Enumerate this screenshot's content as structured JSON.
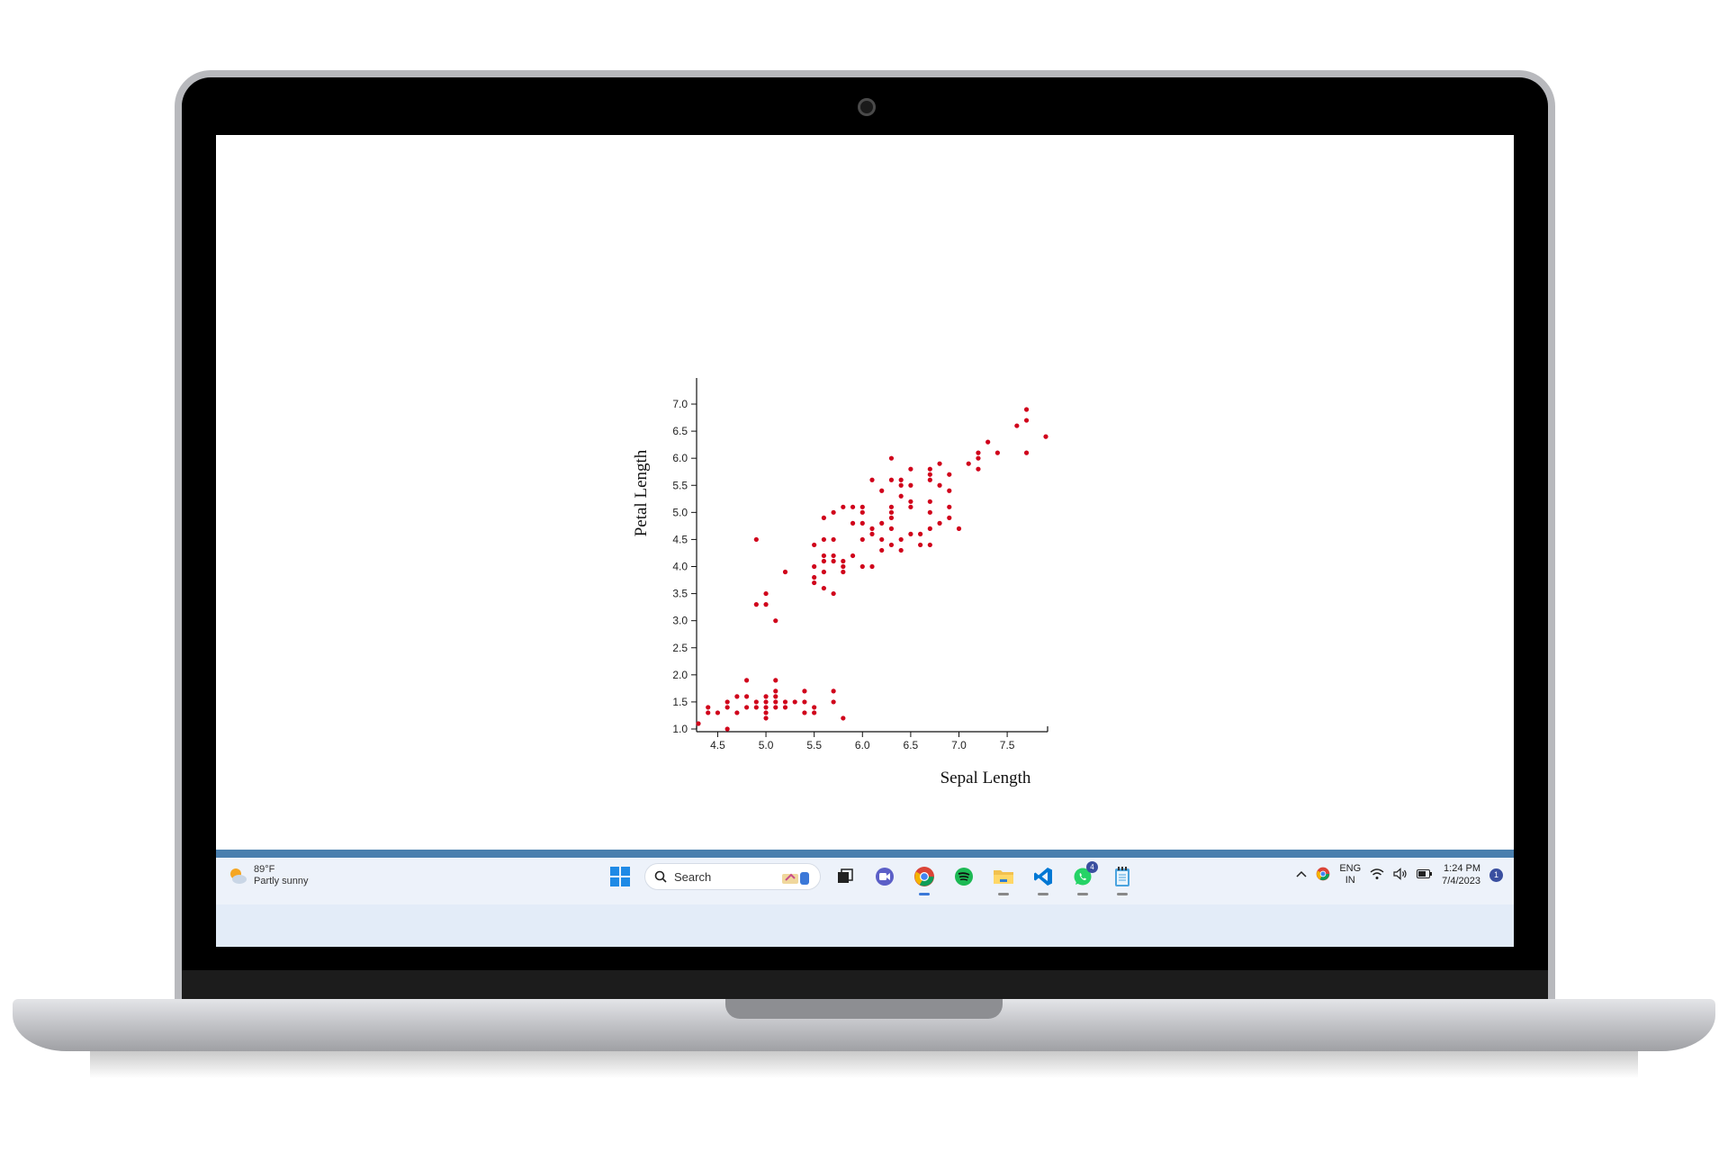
{
  "chart_data": {
    "type": "scatter",
    "title": "",
    "xlabel": "Sepal Length",
    "ylabel": "Petal Length",
    "xlim": [
      4.3,
      7.9
    ],
    "ylim": [
      1.0,
      7.0
    ],
    "x_ticks": [
      "4.5",
      "5.0",
      "5.5",
      "6.0",
      "6.5",
      "7.0",
      "7.5"
    ],
    "y_ticks": [
      "1.0",
      "1.5",
      "2.0",
      "2.5",
      "3.0",
      "3.5",
      "4.0",
      "4.5",
      "5.0",
      "5.5",
      "6.0",
      "6.5",
      "7.0"
    ],
    "grid": false,
    "marker_color": "#d0021b",
    "points": [
      [
        4.3,
        1.1
      ],
      [
        4.4,
        1.3
      ],
      [
        4.4,
        1.4
      ],
      [
        4.5,
        1.3
      ],
      [
        4.6,
        1.4
      ],
      [
        4.6,
        1.5
      ],
      [
        4.6,
        1.0
      ],
      [
        4.7,
        1.3
      ],
      [
        4.7,
        1.6
      ],
      [
        4.8,
        1.4
      ],
      [
        4.8,
        1.6
      ],
      [
        4.8,
        1.9
      ],
      [
        4.9,
        1.4
      ],
      [
        4.9,
        1.5
      ],
      [
        5.0,
        1.2
      ],
      [
        5.0,
        1.3
      ],
      [
        5.0,
        1.4
      ],
      [
        5.0,
        1.5
      ],
      [
        5.0,
        1.6
      ],
      [
        5.1,
        1.4
      ],
      [
        5.1,
        1.5
      ],
      [
        5.1,
        1.6
      ],
      [
        5.1,
        1.7
      ],
      [
        5.1,
        1.9
      ],
      [
        5.2,
        1.4
      ],
      [
        5.2,
        1.5
      ],
      [
        5.3,
        1.5
      ],
      [
        5.4,
        1.3
      ],
      [
        5.4,
        1.5
      ],
      [
        5.4,
        1.7
      ],
      [
        5.5,
        1.3
      ],
      [
        5.5,
        1.4
      ],
      [
        5.7,
        1.5
      ],
      [
        5.7,
        1.7
      ],
      [
        5.8,
        1.2
      ],
      [
        4.9,
        3.3
      ],
      [
        4.9,
        4.5
      ],
      [
        5.0,
        3.3
      ],
      [
        5.0,
        3.5
      ],
      [
        5.1,
        3.0
      ],
      [
        5.2,
        3.9
      ],
      [
        5.5,
        3.7
      ],
      [
        5.5,
        3.8
      ],
      [
        5.5,
        4.0
      ],
      [
        5.5,
        4.4
      ],
      [
        5.6,
        3.6
      ],
      [
        5.6,
        3.9
      ],
      [
        5.6,
        4.1
      ],
      [
        5.6,
        4.2
      ],
      [
        5.6,
        4.5
      ],
      [
        5.6,
        4.9
      ],
      [
        5.7,
        3.5
      ],
      [
        5.7,
        4.1
      ],
      [
        5.7,
        4.2
      ],
      [
        5.7,
        4.5
      ],
      [
        5.7,
        5.0
      ],
      [
        5.8,
        3.9
      ],
      [
        5.8,
        4.0
      ],
      [
        5.8,
        4.1
      ],
      [
        5.8,
        5.1
      ],
      [
        5.9,
        4.2
      ],
      [
        5.9,
        4.8
      ],
      [
        5.9,
        5.1
      ],
      [
        6.0,
        4.0
      ],
      [
        6.0,
        4.5
      ],
      [
        6.0,
        4.8
      ],
      [
        6.0,
        5.0
      ],
      [
        6.0,
        5.1
      ],
      [
        6.1,
        4.0
      ],
      [
        6.1,
        4.6
      ],
      [
        6.1,
        4.7
      ],
      [
        6.1,
        5.6
      ],
      [
        6.2,
        4.3
      ],
      [
        6.2,
        4.5
      ],
      [
        6.2,
        4.8
      ],
      [
        6.2,
        5.4
      ],
      [
        6.3,
        4.4
      ],
      [
        6.3,
        4.7
      ],
      [
        6.3,
        4.9
      ],
      [
        6.3,
        5.0
      ],
      [
        6.3,
        5.1
      ],
      [
        6.3,
        5.6
      ],
      [
        6.3,
        6.0
      ],
      [
        6.4,
        4.3
      ],
      [
        6.4,
        4.5
      ],
      [
        6.4,
        5.3
      ],
      [
        6.4,
        5.5
      ],
      [
        6.4,
        5.6
      ],
      [
        6.5,
        4.6
      ],
      [
        6.5,
        5.1
      ],
      [
        6.5,
        5.2
      ],
      [
        6.5,
        5.5
      ],
      [
        6.5,
        5.8
      ],
      [
        6.6,
        4.4
      ],
      [
        6.6,
        4.6
      ],
      [
        6.7,
        4.4
      ],
      [
        6.7,
        4.7
      ],
      [
        6.7,
        5.0
      ],
      [
        6.7,
        5.2
      ],
      [
        6.7,
        5.6
      ],
      [
        6.7,
        5.7
      ],
      [
        6.7,
        5.8
      ],
      [
        6.8,
        4.8
      ],
      [
        6.8,
        5.5
      ],
      [
        6.8,
        5.9
      ],
      [
        6.9,
        4.9
      ],
      [
        6.9,
        5.1
      ],
      [
        6.9,
        5.4
      ],
      [
        6.9,
        5.7
      ],
      [
        7.0,
        4.7
      ],
      [
        7.1,
        5.9
      ],
      [
        7.2,
        5.8
      ],
      [
        7.2,
        6.0
      ],
      [
        7.2,
        6.1
      ],
      [
        7.3,
        6.3
      ],
      [
        7.4,
        6.1
      ],
      [
        7.6,
        6.6
      ],
      [
        7.7,
        6.1
      ],
      [
        7.7,
        6.7
      ],
      [
        7.7,
        6.9
      ],
      [
        7.9,
        6.4
      ]
    ]
  },
  "taskbar": {
    "weather_temp": "89°F",
    "weather_desc": "Partly sunny",
    "search_label": "Search",
    "whatsapp_badge": "4",
    "lang_1": "ENG",
    "lang_2": "IN",
    "time": "1:24 PM",
    "date": "7/4/2023",
    "notification_count": "1"
  },
  "icons": [
    "windows-start-icon",
    "search-icon",
    "widgets-icon",
    "task-view-icon",
    "meet-icon",
    "chrome-icon",
    "spotify-icon",
    "file-explorer-icon",
    "vscode-icon",
    "whatsapp-icon",
    "notepad-icon",
    "chevron-up-icon",
    "wifi-icon",
    "volume-icon",
    "battery-icon"
  ]
}
